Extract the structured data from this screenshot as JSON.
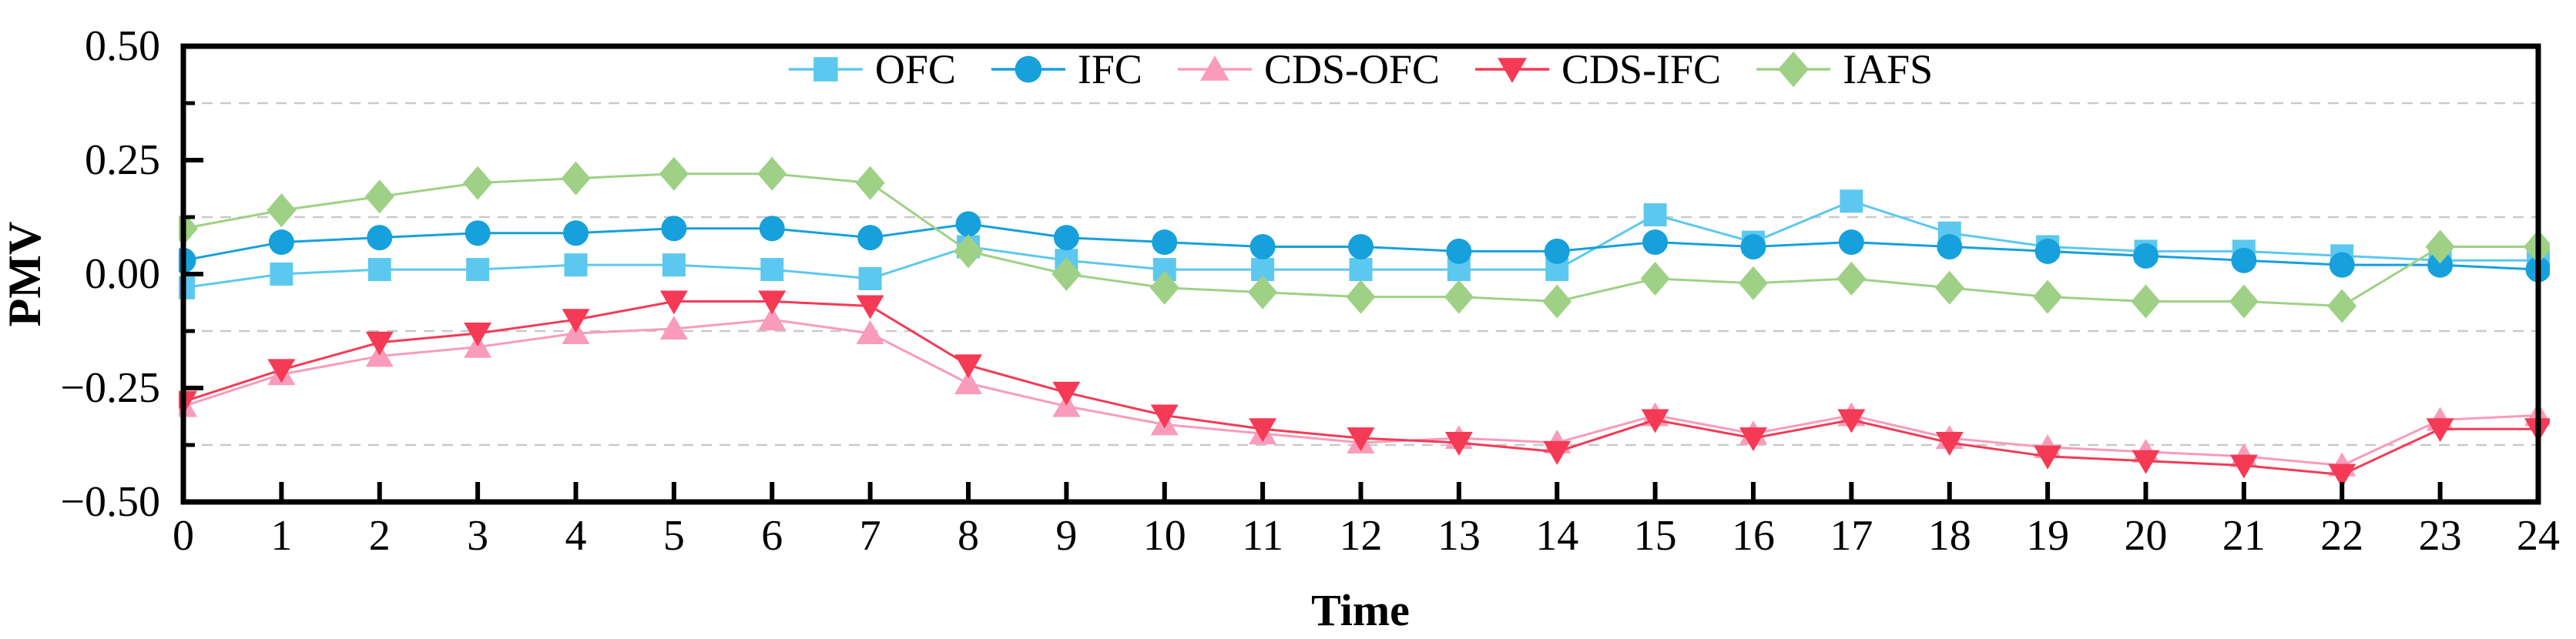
{
  "figure": {
    "background": "#ffffff",
    "frame_color": "#000000",
    "grid_color": "#c9c9c9"
  },
  "chart_data": {
    "type": "line",
    "title": "",
    "xlabel": "Time",
    "ylabel": "PMV",
    "xlim": [
      0,
      24
    ],
    "ylim": [
      -0.5,
      0.5
    ],
    "x": [
      0,
      1,
      2,
      3,
      4,
      5,
      6,
      7,
      8,
      9,
      10,
      11,
      12,
      13,
      14,
      15,
      16,
      17,
      18,
      19,
      20,
      21,
      22,
      23,
      24
    ],
    "xtick_labels": [
      "0",
      "1",
      "2",
      "3",
      "4",
      "5",
      "6",
      "7",
      "8",
      "9",
      "10",
      "11",
      "12",
      "13",
      "14",
      "15",
      "16",
      "17",
      "18",
      "19",
      "20",
      "21",
      "22",
      "23",
      "24"
    ],
    "yticks": [
      0.5,
      0.25,
      0.0,
      -0.25,
      -0.5
    ],
    "ytick_labels": [
      "0.50",
      "0.25",
      "0.00",
      "−0.25",
      "−0.50"
    ],
    "minor_gridlines": [
      0.375,
      0.125,
      -0.125,
      -0.375
    ],
    "grid_style": "dashed",
    "legend_position": "top-center",
    "series": [
      {
        "name": "OFC",
        "marker": "square",
        "color": "#5cc8ef",
        "values": [
          -0.03,
          0.0,
          0.01,
          0.01,
          0.02,
          0.02,
          0.01,
          -0.01,
          0.06,
          0.03,
          0.01,
          0.01,
          0.01,
          0.01,
          0.01,
          0.13,
          0.07,
          0.16,
          0.09,
          0.06,
          0.05,
          0.05,
          0.04,
          0.03,
          0.03
        ]
      },
      {
        "name": "IFC",
        "marker": "circle",
        "color": "#16a0dc",
        "values": [
          0.03,
          0.07,
          0.08,
          0.09,
          0.09,
          0.1,
          0.1,
          0.08,
          0.11,
          0.08,
          0.07,
          0.06,
          0.06,
          0.05,
          0.05,
          0.07,
          0.06,
          0.07,
          0.06,
          0.05,
          0.04,
          0.03,
          0.02,
          0.02,
          0.01
        ]
      },
      {
        "name": "CDS-OFC",
        "marker": "triangle-up",
        "color": "#f99bba",
        "values": [
          -0.29,
          -0.22,
          -0.18,
          -0.16,
          -0.13,
          -0.12,
          -0.1,
          -0.13,
          -0.24,
          -0.29,
          -0.33,
          -0.35,
          -0.37,
          -0.36,
          -0.37,
          -0.31,
          -0.35,
          -0.31,
          -0.36,
          -0.38,
          -0.39,
          -0.4,
          -0.42,
          -0.32,
          -0.31
        ]
      },
      {
        "name": "CDS-IFC",
        "marker": "triangle-down",
        "color": "#f43a55",
        "values": [
          -0.28,
          -0.21,
          -0.15,
          -0.13,
          -0.1,
          -0.06,
          -0.06,
          -0.07,
          -0.2,
          -0.26,
          -0.31,
          -0.34,
          -0.36,
          -0.37,
          -0.39,
          -0.32,
          -0.36,
          -0.32,
          -0.37,
          -0.4,
          -0.41,
          -0.42,
          -0.44,
          -0.34,
          -0.34
        ]
      },
      {
        "name": "IAFS",
        "marker": "diamond",
        "color": "#9ed185",
        "values": [
          0.1,
          0.14,
          0.17,
          0.2,
          0.21,
          0.22,
          0.22,
          0.2,
          0.05,
          0.0,
          -0.03,
          -0.04,
          -0.05,
          -0.05,
          -0.06,
          -0.01,
          -0.02,
          -0.01,
          -0.03,
          -0.05,
          -0.06,
          -0.06,
          -0.07,
          0.06,
          0.06
        ]
      }
    ]
  }
}
